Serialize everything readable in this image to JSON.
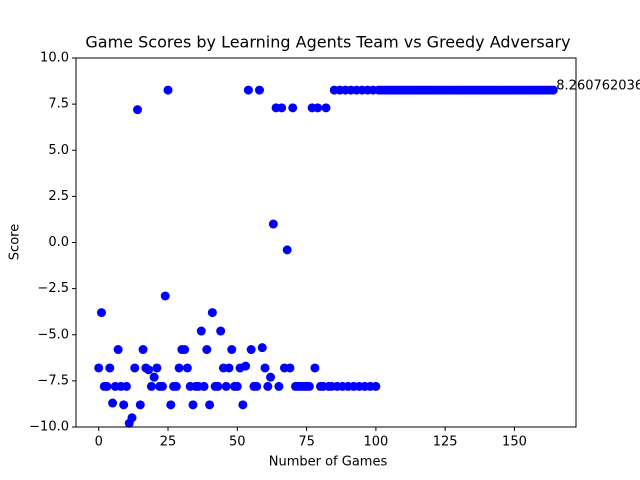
{
  "chart_data": {
    "type": "scatter",
    "title": "Game Scores by Learning Agents Team vs Greedy Adversary",
    "xlabel": "Number of Games",
    "ylabel": "Score",
    "color": "#0000ff",
    "annotation": "8.260762036",
    "xlim": [
      -8.2,
      172.2
    ],
    "ylim": [
      -10,
      10
    ],
    "xticks": [
      0,
      25,
      50,
      75,
      100,
      125,
      150
    ],
    "yticks": [
      {
        "value": -10,
        "label": "−10.0"
      },
      {
        "value": -7.5,
        "label": "−7.5"
      },
      {
        "value": -5,
        "label": "−5.0"
      },
      {
        "value": -2.5,
        "label": "−2.5"
      },
      {
        "value": 0,
        "label": "0.0"
      },
      {
        "value": 2.5,
        "label": "2.5"
      },
      {
        "value": 5,
        "label": "5.0"
      },
      {
        "value": 7.5,
        "label": "7.5"
      },
      {
        "value": 10,
        "label": "10.0"
      }
    ],
    "x": [
      0,
      1,
      2,
      3,
      4,
      5,
      6,
      7,
      8,
      9,
      10,
      11,
      12,
      13,
      14,
      15,
      16,
      17,
      18,
      19,
      20,
      21,
      22,
      23,
      24,
      25,
      26,
      27,
      28,
      29,
      30,
      31,
      32,
      33,
      34,
      35,
      36,
      37,
      38,
      39,
      40,
      41,
      42,
      43,
      44,
      45,
      46,
      47,
      48,
      49,
      50,
      51,
      52,
      53,
      54,
      55,
      56,
      57,
      58,
      59,
      60,
      61,
      62,
      63,
      64,
      65,
      66,
      67,
      68,
      69,
      70,
      71,
      72,
      73,
      74,
      75,
      76,
      77,
      78,
      79,
      80,
      81,
      82,
      83,
      84,
      85,
      86,
      87,
      88,
      89,
      90,
      91,
      92,
      93,
      94,
      95,
      96,
      97,
      98,
      99,
      100,
      101,
      102,
      103,
      104,
      105,
      106,
      107,
      108,
      109,
      110,
      111,
      112,
      113,
      114,
      115,
      116,
      117,
      118,
      119,
      120,
      121,
      122,
      123,
      124,
      125,
      126,
      127,
      128,
      129,
      130,
      131,
      132,
      133,
      134,
      135,
      136,
      137,
      138,
      139,
      140,
      141,
      142,
      143,
      144,
      145,
      146,
      147,
      148,
      149,
      150,
      151,
      152,
      153,
      154,
      155,
      156,
      157,
      158,
      159,
      160,
      161,
      162,
      163,
      164
    ],
    "values": [
      -6.8,
      -3.8,
      -7.8,
      -7.8,
      -6.8,
      -8.7,
      -7.8,
      -5.8,
      -7.8,
      -8.8,
      -7.8,
      -9.8,
      -9.5,
      -6.8,
      7.2,
      -8.8,
      -5.8,
      -6.8,
      -6.9,
      -7.8,
      -7.3,
      -6.8,
      -7.8,
      -7.8,
      -2.9,
      8.260762036,
      -8.8,
      -7.8,
      -7.8,
      -6.8,
      -5.8,
      -5.8,
      -6.8,
      -7.8,
      -8.8,
      -7.8,
      -7.8,
      -4.8,
      -7.8,
      -5.8,
      -8.8,
      -3.8,
      -7.8,
      -7.8,
      -4.8,
      -6.8,
      -7.8,
      -6.8,
      -5.8,
      -7.8,
      -7.8,
      -6.8,
      -8.8,
      -6.7,
      8.260762036,
      -5.8,
      -7.8,
      -7.8,
      8.260762036,
      -5.7,
      -6.8,
      -7.8,
      -7.3,
      1.0,
      7.3,
      -7.8,
      7.3,
      -6.8,
      -0.4,
      -6.8,
      7.3,
      -7.8,
      -7.8,
      -7.8,
      -7.8,
      -7.8,
      -7.8,
      7.3,
      -6.8,
      7.3,
      -7.8,
      -7.8,
      7.3,
      -7.8,
      -7.8,
      8.260762036,
      -7.8,
      8.260762036,
      -7.8,
      8.260762036,
      -7.8,
      8.260762036,
      -7.8,
      8.260762036,
      -7.8,
      8.260762036,
      -7.8,
      8.260762036,
      -7.8,
      8.260762036,
      -7.8,
      8.260762036,
      8.260762036,
      8.260762036,
      8.260762036,
      8.260762036,
      8.260762036,
      8.260762036,
      8.260762036,
      8.260762036,
      8.260762036,
      8.260762036,
      8.260762036,
      8.260762036,
      8.260762036,
      8.260762036,
      8.260762036,
      8.260762036,
      8.260762036,
      8.260762036,
      8.260762036,
      8.260762036,
      8.260762036,
      8.260762036,
      8.260762036,
      8.260762036,
      8.260762036,
      8.260762036,
      8.260762036,
      8.260762036,
      8.260762036,
      8.260762036,
      8.260762036,
      8.260762036,
      8.260762036,
      8.260762036,
      8.260762036,
      8.260762036,
      8.260762036,
      8.260762036,
      8.260762036,
      8.260762036,
      8.260762036,
      8.260762036,
      8.260762036,
      8.260762036,
      8.260762036,
      8.260762036,
      8.260762036,
      8.260762036,
      8.260762036,
      8.260762036,
      8.260762036,
      8.260762036,
      8.260762036,
      8.260762036,
      8.260762036,
      8.260762036,
      8.260762036,
      8.260762036,
      8.260762036,
      8.260762036,
      8.260762036,
      8.260762036,
      8.260762036
    ]
  }
}
